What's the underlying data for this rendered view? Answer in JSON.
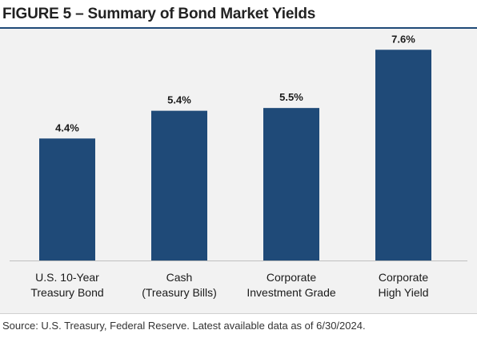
{
  "title": "FIGURE 5 – Summary of Bond Market Yields",
  "source": "Source: U.S. Treasury, Federal Reserve. Latest available data as of 6/30/2024.",
  "colors": {
    "bar": "#1f4a78",
    "panel": "#f2f2f2",
    "baseline": "#bfbfbf",
    "text": "#1a1a1a"
  },
  "chart_data": {
    "type": "bar",
    "categories": [
      [
        "U.S. 10-Year",
        "Treasury Bond"
      ],
      [
        "Cash",
        "(Treasury Bills)"
      ],
      [
        "Corporate",
        "Investment Grade"
      ],
      [
        "Corporate",
        "High Yield"
      ]
    ],
    "values": [
      4.4,
      5.4,
      5.5,
      7.6
    ],
    "data_labels": [
      "4.4%",
      "5.4%",
      "5.5%",
      "7.6%"
    ],
    "ylim": [
      0,
      8
    ],
    "grid": false,
    "legend": "none",
    "xlabel": "",
    "ylabel": ""
  }
}
